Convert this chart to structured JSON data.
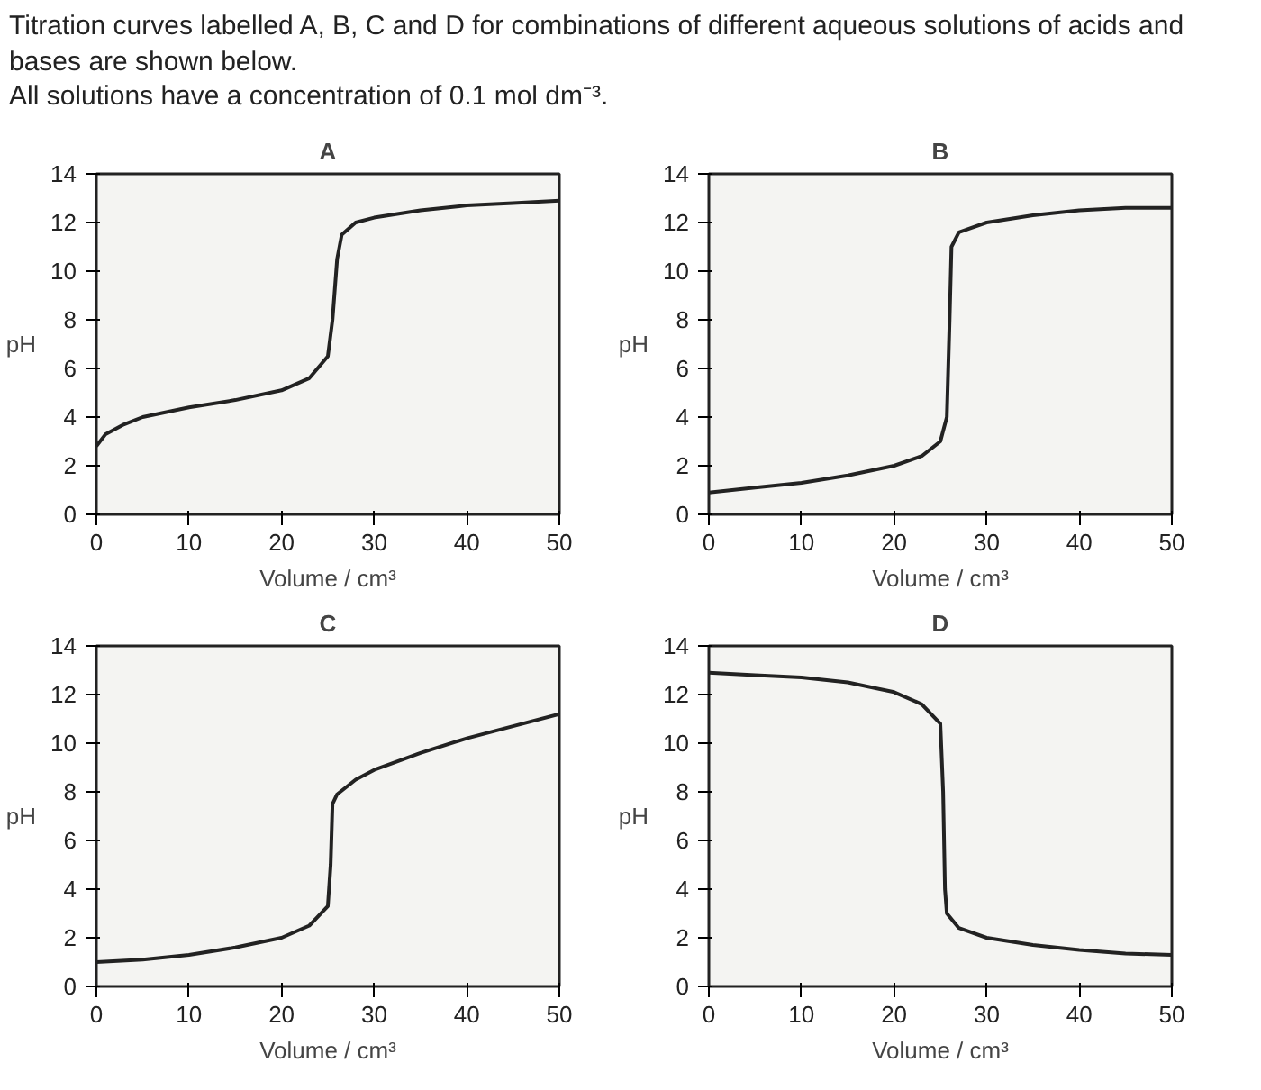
{
  "chart_data": [
    {
      "type": "line",
      "title": "A",
      "annotations": [
        "Titration curves labelled A, B, C and D for combinations of different aqueous solutions of acids and bases are shown below.",
        "All solutions have a concentration of 0.1 mol dm⁻³."
      ],
      "xlabel": "Volume / cm³",
      "ylabel": "pH",
      "xlim": [
        0,
        50
      ],
      "ylim": [
        0,
        14
      ],
      "xticks": [
        0,
        10,
        20,
        30,
        40,
        50
      ],
      "yticks": [
        0,
        2,
        4,
        6,
        8,
        10,
        12,
        14
      ],
      "grid": false,
      "line_style": "solid",
      "color": "#222222",
      "x": [
        0,
        1,
        3,
        5,
        10,
        15,
        20,
        23,
        25,
        25.5,
        26,
        26.5,
        28,
        30,
        35,
        40,
        45,
        50
      ],
      "values": [
        2.8,
        3.3,
        3.7,
        4.0,
        4.4,
        4.7,
        5.1,
        5.6,
        6.5,
        8,
        10.5,
        11.5,
        12.0,
        12.2,
        12.5,
        12.7,
        12.8,
        12.9
      ]
    },
    {
      "type": "line",
      "title": "B",
      "xlabel": "Volume / cm³",
      "ylabel": "pH",
      "xlim": [
        0,
        50
      ],
      "ylim": [
        0,
        14
      ],
      "xticks": [
        0,
        10,
        20,
        30,
        40,
        50
      ],
      "yticks": [
        0,
        2,
        4,
        6,
        8,
        10,
        12,
        14
      ],
      "grid": false,
      "line_style": "solid",
      "color": "#222222",
      "x": [
        0,
        5,
        10,
        15,
        20,
        23,
        25,
        25.7,
        26,
        26.2,
        27,
        30,
        35,
        40,
        45,
        50
      ],
      "values": [
        0.9,
        1.1,
        1.3,
        1.6,
        2.0,
        2.4,
        3.0,
        4,
        8,
        11,
        11.6,
        12.0,
        12.3,
        12.5,
        12.6,
        12.6
      ]
    },
    {
      "type": "line",
      "title": "C",
      "xlabel": "Volume / cm³",
      "ylabel": "pH",
      "xlim": [
        0,
        50
      ],
      "ylim": [
        0,
        14
      ],
      "xticks": [
        0,
        10,
        20,
        30,
        40,
        50
      ],
      "yticks": [
        0,
        2,
        4,
        6,
        8,
        10,
        12,
        14
      ],
      "grid": false,
      "line_style": "solid",
      "color": "#222222",
      "x": [
        0,
        5,
        10,
        15,
        20,
        23,
        25,
        25.3,
        25.5,
        26,
        28,
        30,
        35,
        40,
        45,
        50
      ],
      "values": [
        1.0,
        1.1,
        1.3,
        1.6,
        2.0,
        2.5,
        3.3,
        5,
        7.5,
        7.9,
        8.5,
        8.9,
        9.6,
        10.2,
        10.7,
        11.2
      ]
    },
    {
      "type": "line",
      "title": "D",
      "xlabel": "Volume / cm³",
      "ylabel": "pH",
      "xlim": [
        0,
        50
      ],
      "ylim": [
        0,
        14
      ],
      "xticks": [
        0,
        10,
        20,
        30,
        40,
        50
      ],
      "yticks": [
        0,
        2,
        4,
        6,
        8,
        10,
        12,
        14
      ],
      "grid": false,
      "line_style": "solid",
      "color": "#222222",
      "x": [
        0,
        5,
        10,
        15,
        20,
        23,
        25,
        25.3,
        25.5,
        25.7,
        27,
        30,
        35,
        40,
        45,
        50
      ],
      "values": [
        12.9,
        12.8,
        12.7,
        12.5,
        12.1,
        11.6,
        10.8,
        8,
        4,
        3.0,
        2.4,
        2.0,
        1.7,
        1.5,
        1.35,
        1.3
      ]
    }
  ]
}
